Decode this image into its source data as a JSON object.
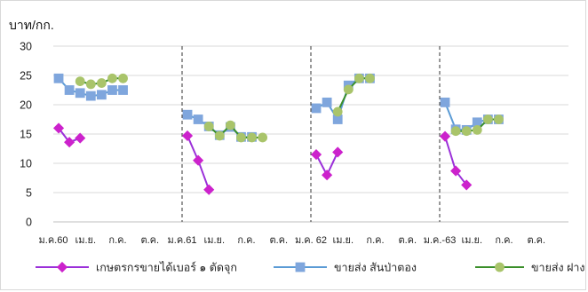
{
  "chart_data": {
    "type": "line",
    "ylabel": "บาท/กก.",
    "ylim": [
      0,
      30
    ],
    "yticks": [
      0,
      5,
      10,
      15,
      20,
      25,
      30
    ],
    "grid": "horizontal",
    "legend_position": "bottom",
    "x_labels": [
      "ม.ค.60",
      "เม.ย.",
      "ก.ค.",
      "ต.ค.",
      "ม.ค.61",
      "เม.ย.",
      "ก.ค.",
      "ต.ค.",
      "ม.ค. 62",
      "เม.ย.",
      "ก.ค.",
      "ต.ค.",
      "ม.ค.-63",
      "เม.ย.",
      "ก.ค.",
      "ต.ค."
    ],
    "month_count": 48,
    "dividers_at_month": [
      12,
      24,
      36
    ],
    "series": [
      {
        "name": "เกษตรกรขายได้เบอร์ ๑ ตัดจุก",
        "color": "#9b30d9",
        "marker": "diamond",
        "marker_color": "#cc22cc",
        "points": [
          [
            0,
            16
          ],
          [
            1,
            13.6
          ],
          [
            2,
            14.3
          ],
          [
            12,
            14.7
          ],
          [
            13,
            10.5
          ],
          [
            14,
            5.5
          ],
          [
            24,
            11.5
          ],
          [
            25,
            8
          ],
          [
            26,
            11.9
          ],
          [
            36,
            14.6
          ],
          [
            37,
            8.7
          ],
          [
            38,
            6.3
          ]
        ]
      },
      {
        "name": "ขายส่ง สันป่าตอง",
        "color": "#5b9bd5",
        "marker": "square",
        "marker_color": "#7fa6dd",
        "points": [
          [
            0,
            24.5
          ],
          [
            1,
            22.5
          ],
          [
            2,
            22
          ],
          [
            3,
            21.5
          ],
          [
            4,
            21.7
          ],
          [
            5,
            22.5
          ],
          [
            6,
            22.5
          ],
          [
            12,
            18.3
          ],
          [
            13,
            17.5
          ],
          [
            14,
            16.3
          ],
          [
            15,
            14.8
          ],
          [
            16,
            16.2
          ],
          [
            17,
            14.5
          ],
          [
            18,
            14.5
          ],
          [
            24,
            19.4
          ],
          [
            25,
            20.4
          ],
          [
            26,
            17.5
          ],
          [
            27,
            23.3
          ],
          [
            28,
            24.5
          ],
          [
            29,
            24.5
          ],
          [
            36,
            20.4
          ],
          [
            37,
            15.8
          ],
          [
            38,
            15.7
          ],
          [
            39,
            17
          ],
          [
            40,
            17.5
          ],
          [
            41,
            17.5
          ]
        ]
      },
      {
        "name": "ขายส่ง ฝาง",
        "color": "#3a8f2a",
        "marker": "circle",
        "marker_color": "#a9c46a",
        "points": [
          [
            2,
            24
          ],
          [
            3,
            23.5
          ],
          [
            4,
            23.7
          ],
          [
            5,
            24.5
          ],
          [
            6,
            24.5
          ],
          [
            14,
            16.3
          ],
          [
            15,
            14.7
          ],
          [
            16,
            16.5
          ],
          [
            17,
            14.4
          ],
          [
            18,
            14.4
          ],
          [
            19,
            14.4
          ],
          [
            26,
            18.8
          ],
          [
            27,
            22.6
          ],
          [
            28,
            24.5
          ],
          [
            29,
            24.5
          ],
          [
            37,
            15.5
          ],
          [
            38,
            15.5
          ],
          [
            39,
            15.7
          ],
          [
            40,
            17.5
          ],
          [
            41,
            17.5
          ]
        ]
      }
    ]
  }
}
